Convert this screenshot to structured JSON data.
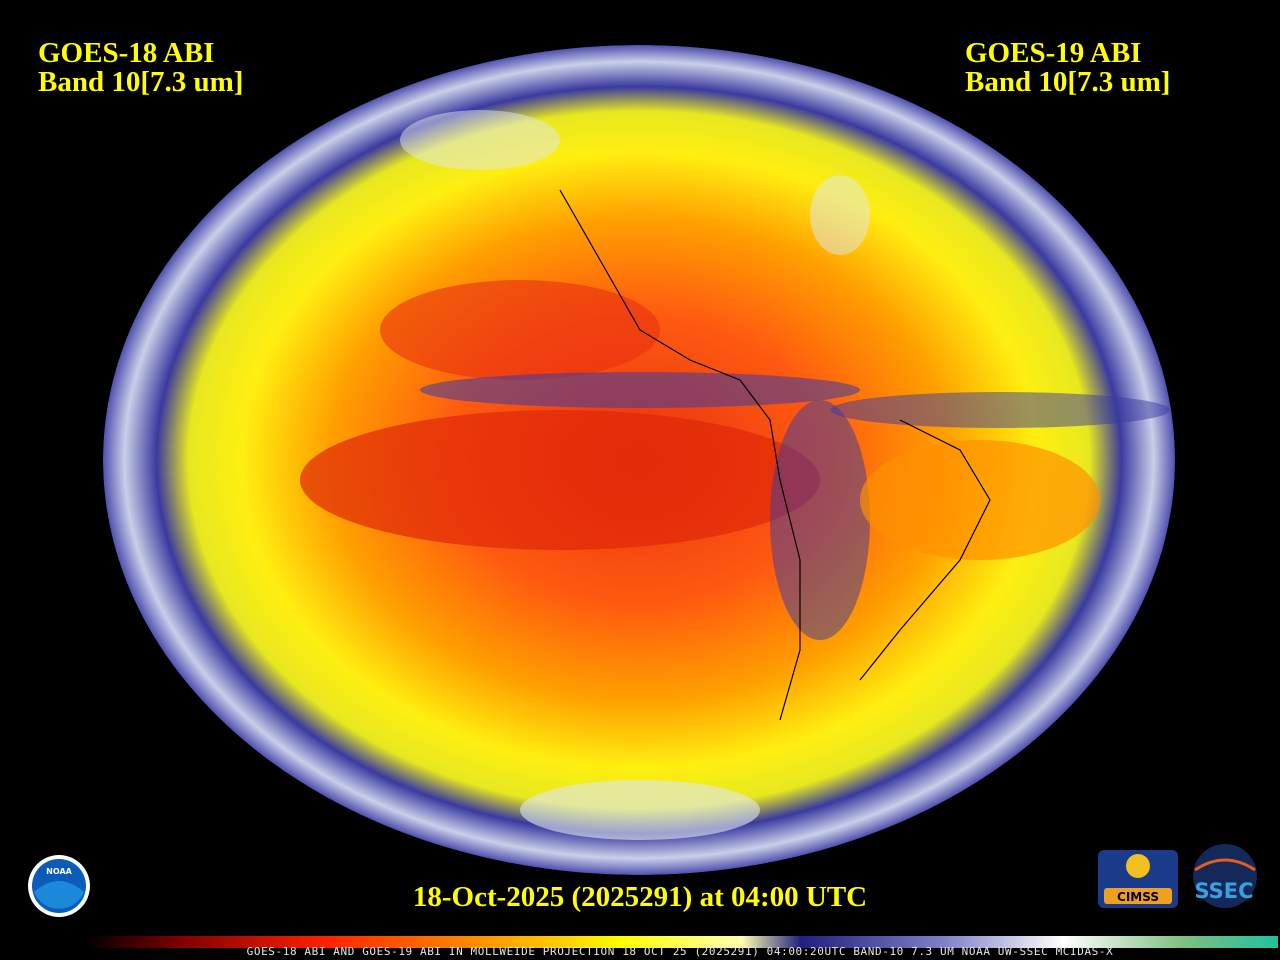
{
  "header": {
    "left": {
      "line1": "GOES-18 ABI",
      "line2": "Band 10[7.3 um]"
    },
    "right": {
      "line1": "GOES-19 ABI",
      "line2": "Band 10[7.3 um]"
    }
  },
  "timestamp": "18-Oct-2025 (2025291) at 04:00 UTC",
  "footer": "GOES-18 ABI AND GOES-19 ABI IN MOLLWEIDE PROJECTION 18 OCT 25 (2025291) 04:00:20UTC BAND-10 7.3 UM NOAA UW-SSEC MCIDAS-X",
  "logos": {
    "noaa": "NOAA",
    "cimss": "CIMSS",
    "ssec": "SSEC"
  }
}
